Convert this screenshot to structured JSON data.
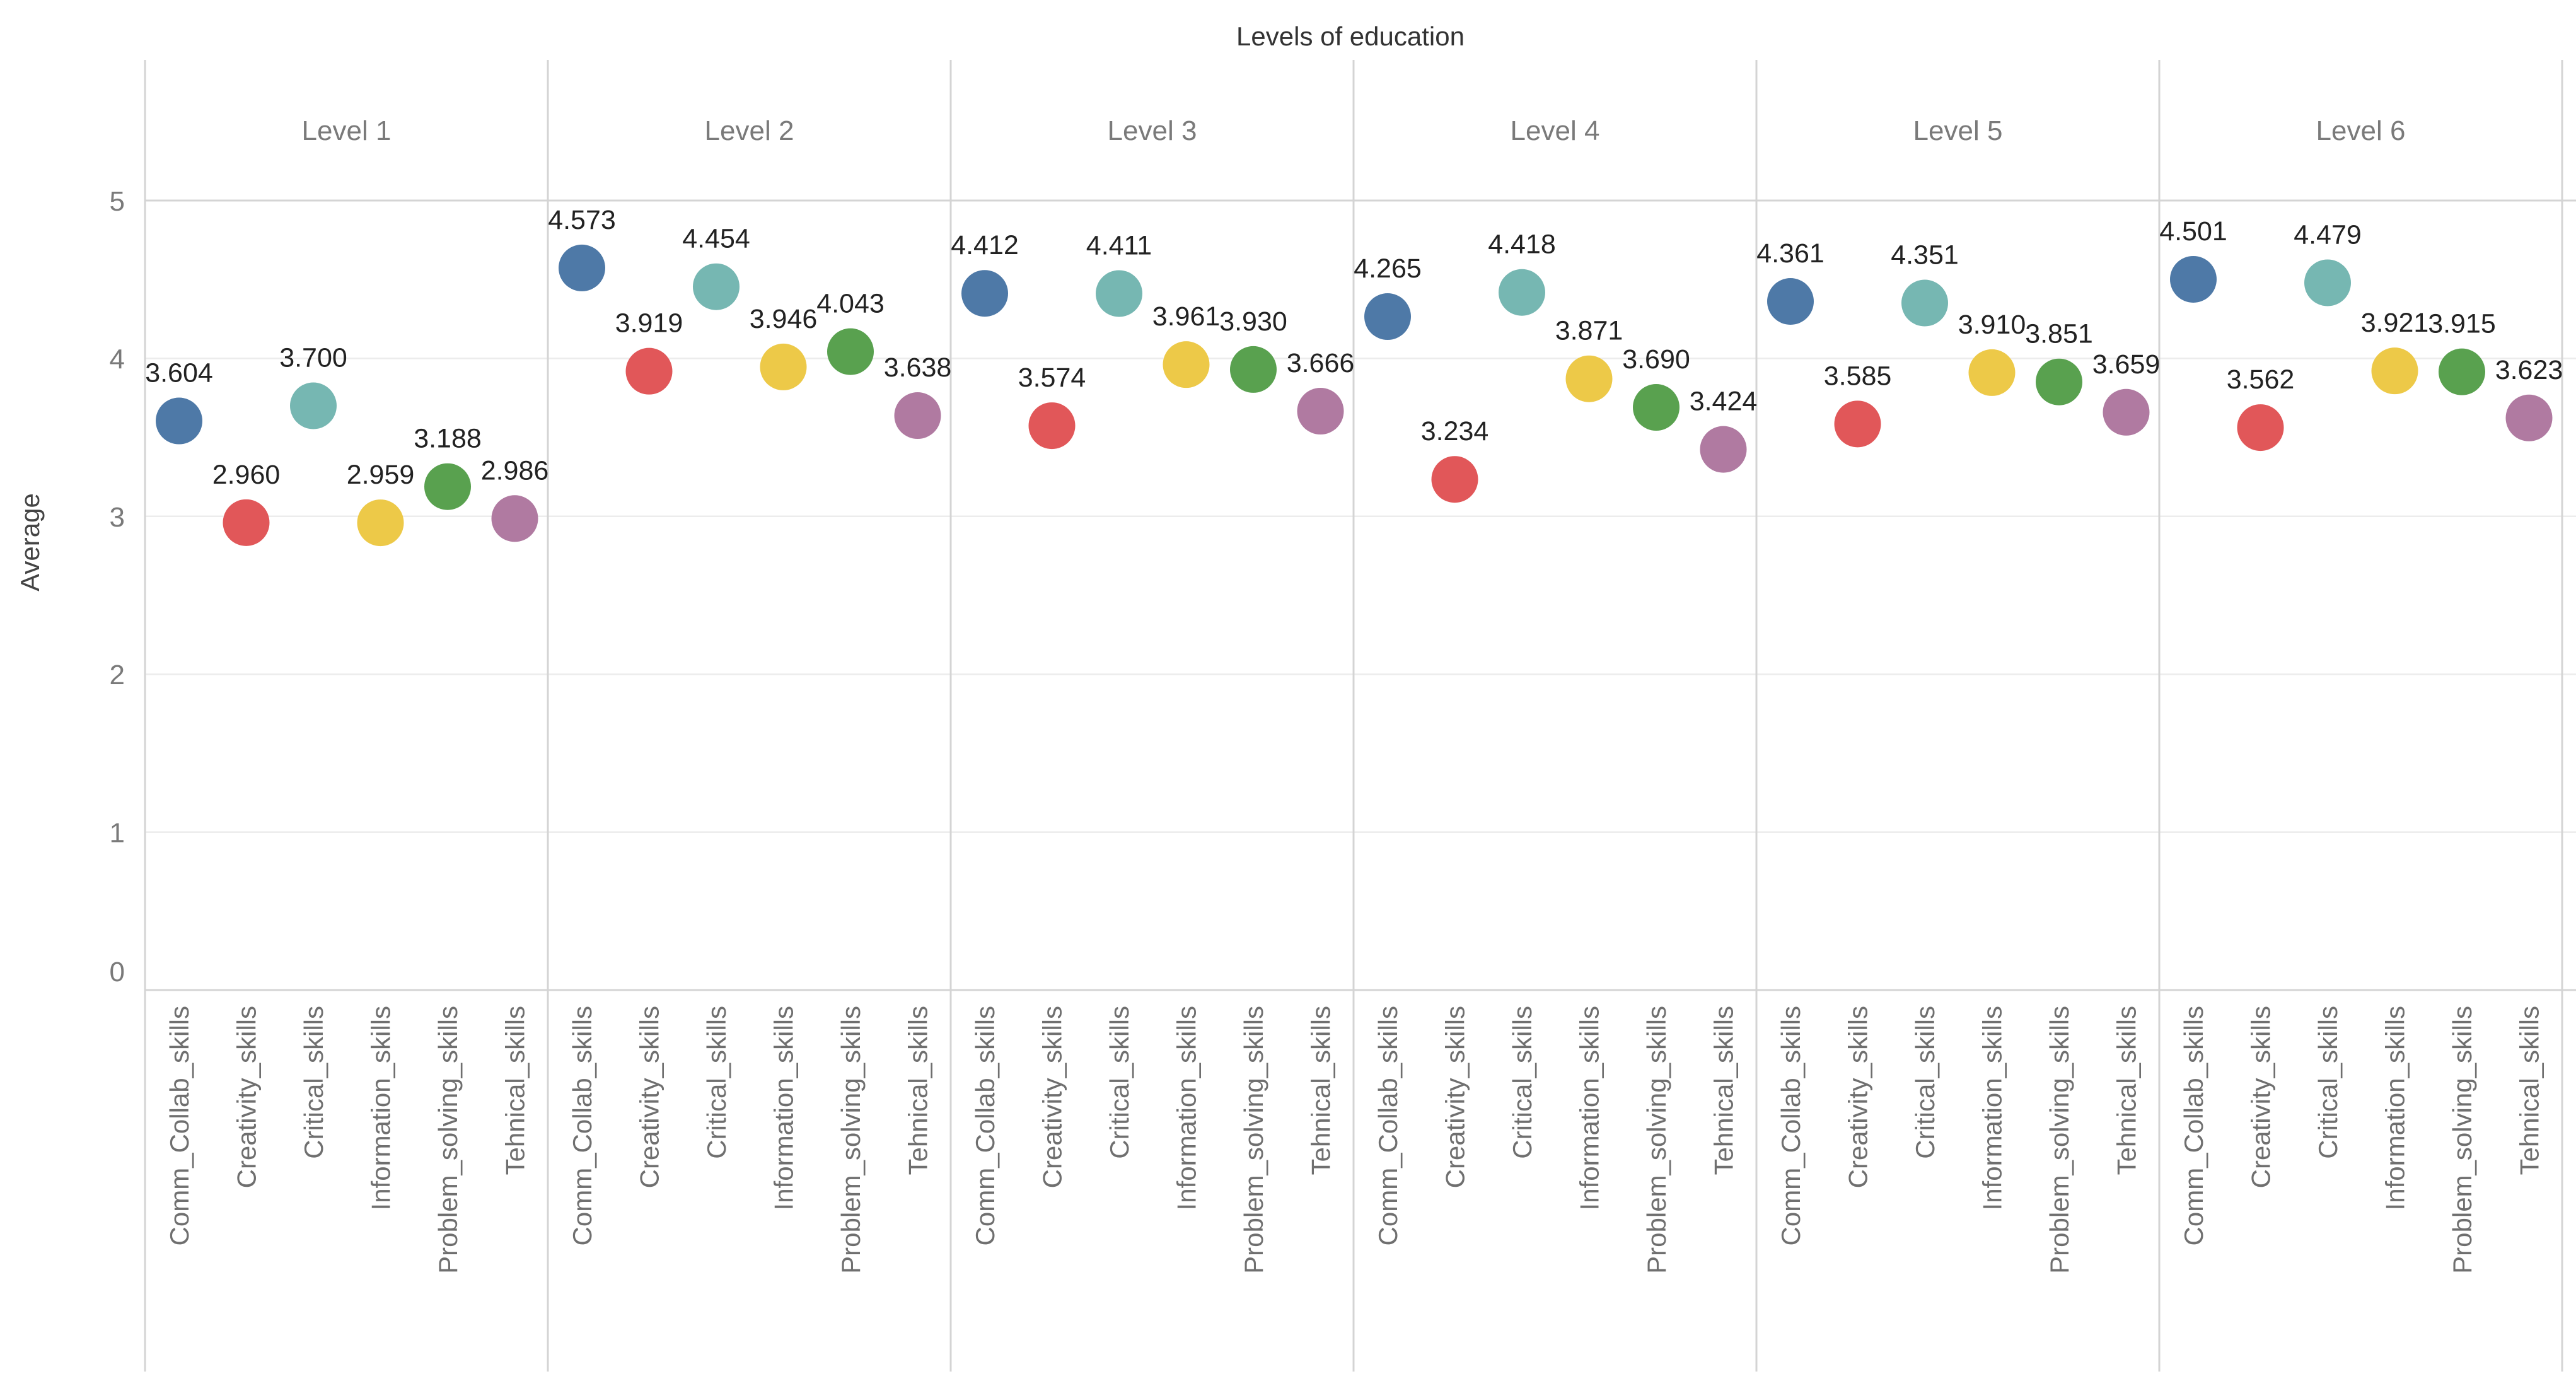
{
  "chart_data": {
    "type": "scatter",
    "title": "Levels of education",
    "ylabel": "Average",
    "xlabel": "",
    "ylim": [
      0,
      5
    ],
    "yticks": [
      0,
      1,
      2,
      3,
      4,
      5
    ],
    "grid": true,
    "categories": [
      "Comm_Collab_skills",
      "Creativity_skills",
      "Critical_skills",
      "Information_skills",
      "Problem_solving_skills",
      "Tehnical_skills"
    ],
    "colors": [
      "#4e79a7",
      "#e15759",
      "#76b7b2",
      "#edc948",
      "#59a14f",
      "#b07aa1"
    ],
    "panels": [
      {
        "name": "Level 1",
        "values": [
          3.604,
          2.96,
          3.7,
          2.959,
          3.188,
          2.986
        ],
        "labels": [
          "3.604",
          "2.960",
          "3.700",
          "2.959",
          "3.188",
          "2.986"
        ]
      },
      {
        "name": "Level 2",
        "values": [
          4.573,
          3.919,
          4.454,
          3.946,
          4.043,
          3.638
        ],
        "labels": [
          "4.573",
          "3.919",
          "4.454",
          "3.946",
          "4.043",
          "3.638"
        ]
      },
      {
        "name": "Level 3",
        "values": [
          4.412,
          3.574,
          4.411,
          3.961,
          3.93,
          3.666
        ],
        "labels": [
          "4.412",
          "3.574",
          "4.411",
          "3.961",
          "3.930",
          "3.666"
        ]
      },
      {
        "name": "Level 4",
        "values": [
          4.265,
          3.234,
          4.418,
          3.871,
          3.69,
          3.424
        ],
        "labels": [
          "4.265",
          "3.234",
          "4.418",
          "3.871",
          "3.690",
          "3.424"
        ]
      },
      {
        "name": "Level 5",
        "values": [
          4.361,
          3.585,
          4.351,
          3.91,
          3.851,
          3.659
        ],
        "labels": [
          "4.361",
          "3.585",
          "4.351",
          "3.910",
          "3.851",
          "3.659"
        ]
      },
      {
        "name": "Level 6",
        "values": [
          4.501,
          3.562,
          4.479,
          3.921,
          3.915,
          3.623
        ],
        "labels": [
          "4.501",
          "3.562",
          "4.479",
          "3.921",
          "3.915",
          "3.623"
        ]
      }
    ]
  }
}
